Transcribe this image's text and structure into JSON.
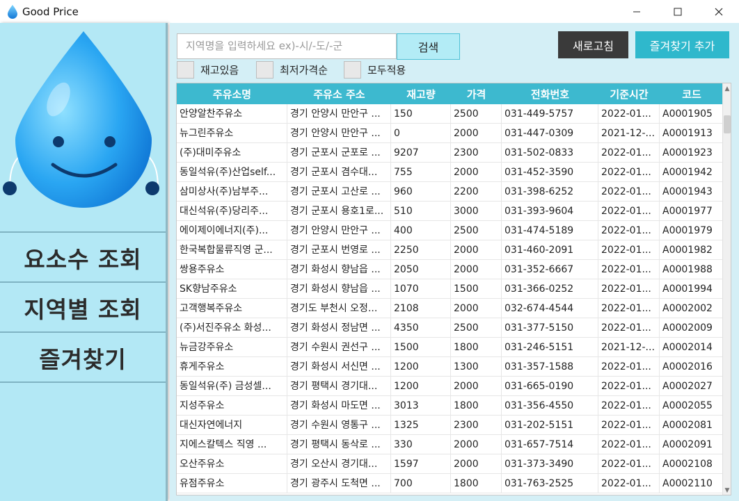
{
  "window": {
    "title": "Good Price"
  },
  "sidebar": {
    "items": [
      {
        "label": "요소수 조회"
      },
      {
        "label": "지역별 조회"
      },
      {
        "label": "즐겨찾기"
      }
    ]
  },
  "toolbar": {
    "search_placeholder": "지역명을 입력하세요 ex)-시/-도/-군",
    "search_label": "검색",
    "refresh_label": "새로고침",
    "add_favorite_label": "즐겨찾기 추가",
    "checkboxes": [
      {
        "label": "재고있음",
        "checked": false
      },
      {
        "label": "최저가격순",
        "checked": false
      },
      {
        "label": "모두적용",
        "checked": false
      }
    ]
  },
  "table": {
    "columns": [
      "주유소명",
      "주유소 주소",
      "재고량",
      "가격",
      "전화번호",
      "기준시간",
      "코드"
    ],
    "rows": [
      [
        "안양알찬주유소",
        "경기 안양시 만안구 ...",
        "150",
        "2500",
        "031-449-5757",
        "2022-01...",
        "A0001905"
      ],
      [
        "뉴그린주유소",
        "경기 안양시 만안구 ...",
        "0",
        "2000",
        "031-447-0309",
        "2021-12-...",
        "A0001913"
      ],
      [
        "(주)대미주유소",
        "경기 군포시 군포로 ...",
        "9207",
        "2300",
        "031-502-0833",
        "2022-01...",
        "A0001923"
      ],
      [
        "동일석유(주)산업self...",
        "경기 군포시 겸수대...",
        "755",
        "2000",
        "031-452-3590",
        "2022-01...",
        "A0001942"
      ],
      [
        "삼미상사(주)남부주...",
        "경기 군포시 고산로 ...",
        "960",
        "2200",
        "031-398-6252",
        "2022-01...",
        "A0001943"
      ],
      [
        "대신석유(주)당리주...",
        "경기 군포시 용호1로...",
        "510",
        "3000",
        "031-393-9604",
        "2022-01...",
        "A0001977"
      ],
      [
        "에이제이에너지(주)...",
        "경기 안양시 만안구 ...",
        "400",
        "2500",
        "031-474-5189",
        "2022-01...",
        "A0001979"
      ],
      [
        "한국복합물류직영 군...",
        "경기 군포시 번영로 ...",
        "2250",
        "2000",
        "031-460-2091",
        "2022-01...",
        "A0001982"
      ],
      [
        "쌍용주유소",
        "경기 화성시 향남읍 ...",
        "2050",
        "2000",
        "031-352-6667",
        "2022-01...",
        "A0001988"
      ],
      [
        "SK향남주유소",
        "경기 화성시 향남읍 ...",
        "1070",
        "1500",
        "031-366-0252",
        "2022-01...",
        "A0001994"
      ],
      [
        "고객행복주유소",
        "경기도 부천시 오정...",
        "2108",
        "2000",
        "032-674-4544",
        "2022-01...",
        "A0002002"
      ],
      [
        "(주)서진주유소 화성...",
        "경기 화성시 정남면 ...",
        "4350",
        "2500",
        "031-377-5150",
        "2022-01...",
        "A0002009"
      ],
      [
        "뉴금강주유소",
        "경기 수원시 권선구 ...",
        "1500",
        "1800",
        "031-246-5151",
        "2021-12-...",
        "A0002014"
      ],
      [
        "휴게주유소",
        "경기 화성시 서신면 ...",
        "1200",
        "1300",
        "031-357-1588",
        "2022-01...",
        "A0002016"
      ],
      [
        "동일석유(주) 금성셀...",
        "경기 평택시 경기대...",
        "1200",
        "2000",
        "031-665-0190",
        "2022-01...",
        "A0002027"
      ],
      [
        "지성주유소",
        "경기 화성시 마도면 ...",
        "3013",
        "1800",
        "031-356-4550",
        "2022-01...",
        "A0002055"
      ],
      [
        "대신자연에너지",
        "경기 수원시 영통구 ...",
        "1325",
        "2300",
        "031-202-5151",
        "2022-01...",
        "A0002081"
      ],
      [
        "지에스칼텍스 직영 ...",
        "경기 평택시 동삭로 ...",
        "330",
        "2000",
        "031-657-7514",
        "2022-01...",
        "A0002091"
      ],
      [
        "오산주유소",
        "경기 오산시 경기대...",
        "1597",
        "2000",
        "031-373-3490",
        "2022-01...",
        "A0002108"
      ],
      [
        "유점주유소",
        "경기 광주시 도척면 ...",
        "700",
        "1800",
        "031-763-2525",
        "2022-01...",
        "A0002110"
      ]
    ]
  },
  "icons": {
    "app": "water-drop-icon",
    "mascot": "water-drop-mascot-icon",
    "minimize": "minimize-icon",
    "maximize": "maximize-icon",
    "close": "close-icon"
  },
  "colors": {
    "sidebar_bg": "#b3e8f5",
    "main_bg": "#d4eff6",
    "table_header": "#3db9cf",
    "accent_button": "#2fb8cc",
    "dark_button": "#3a3a3a"
  }
}
